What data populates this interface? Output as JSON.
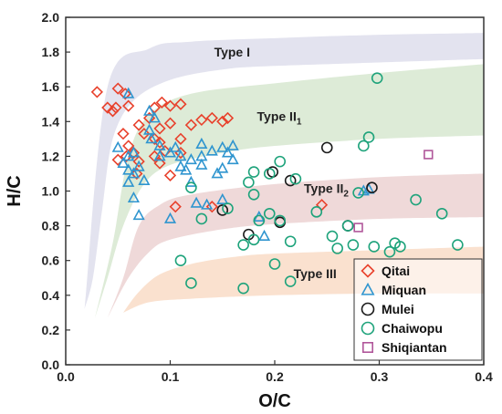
{
  "chart_data": {
    "type": "scatter",
    "xlabel": "O/C",
    "ylabel": "H/C",
    "xlim": [
      0,
      0.4
    ],
    "ylim": [
      0,
      2.0
    ],
    "x_ticks": [
      "0.0",
      "0.1",
      "0.2",
      "0.3",
      "0.4"
    ],
    "y_ticks": [
      "0.0",
      "0.2",
      "0.4",
      "0.6",
      "0.8",
      "1.0",
      "1.2",
      "1.4",
      "1.6",
      "1.8",
      "2.0"
    ],
    "grid": false,
    "legend_position": "bottom-right",
    "zones": [
      {
        "label": "Type I",
        "color": "#e3e3ef",
        "lower": [
          [
            0.018,
            0.32
          ],
          [
            0.026,
            0.5
          ],
          [
            0.035,
            0.9
          ],
          [
            0.045,
            1.3
          ],
          [
            0.065,
            1.52
          ],
          [
            0.1,
            1.64
          ],
          [
            0.15,
            1.7
          ],
          [
            0.2,
            1.72
          ],
          [
            0.3,
            1.74
          ],
          [
            0.4,
            1.76
          ]
        ],
        "upper": [
          [
            0.018,
            0.32
          ],
          [
            0.04,
            1.6
          ],
          [
            0.08,
            1.82
          ],
          [
            0.12,
            1.86
          ],
          [
            0.2,
            1.88
          ],
          [
            0.3,
            1.9
          ],
          [
            0.4,
            1.91
          ]
        ]
      },
      {
        "label": "Type II1",
        "color": "#ddebd7",
        "lower": [
          [
            0.028,
            0.27
          ],
          [
            0.04,
            0.5
          ],
          [
            0.055,
            0.8
          ],
          [
            0.075,
            1.04
          ],
          [
            0.1,
            1.15
          ],
          [
            0.15,
            1.22
          ],
          [
            0.2,
            1.26
          ],
          [
            0.3,
            1.3
          ],
          [
            0.4,
            1.32
          ]
        ],
        "upper": [
          [
            0.028,
            0.27
          ],
          [
            0.045,
            0.7
          ],
          [
            0.06,
            1.2
          ],
          [
            0.08,
            1.44
          ],
          [
            0.12,
            1.56
          ],
          [
            0.2,
            1.62
          ],
          [
            0.3,
            1.68
          ],
          [
            0.4,
            1.73
          ]
        ]
      },
      {
        "label": "Type II2",
        "color": "#efd9d9",
        "lower": [
          [
            0.04,
            0.27
          ],
          [
            0.06,
            0.5
          ],
          [
            0.08,
            0.65
          ],
          [
            0.1,
            0.72
          ],
          [
            0.15,
            0.78
          ],
          [
            0.2,
            0.81
          ],
          [
            0.3,
            0.84
          ],
          [
            0.4,
            0.85
          ]
        ],
        "upper": [
          [
            0.04,
            0.27
          ],
          [
            0.055,
            0.5
          ],
          [
            0.07,
            0.8
          ],
          [
            0.09,
            0.92
          ],
          [
            0.12,
            0.98
          ],
          [
            0.2,
            1.04
          ],
          [
            0.3,
            1.08
          ],
          [
            0.4,
            1.1
          ]
        ]
      },
      {
        "label": "Type III",
        "color": "#fae1cf",
        "lower": [
          [
            0.055,
            0.3
          ],
          [
            0.08,
            0.36
          ],
          [
            0.12,
            0.38
          ],
          [
            0.2,
            0.4
          ],
          [
            0.3,
            0.41
          ],
          [
            0.4,
            0.41
          ]
        ],
        "upper": [
          [
            0.055,
            0.3
          ],
          [
            0.07,
            0.42
          ],
          [
            0.09,
            0.52
          ],
          [
            0.12,
            0.58
          ],
          [
            0.16,
            0.62
          ],
          [
            0.2,
            0.64
          ],
          [
            0.3,
            0.66
          ],
          [
            0.4,
            0.68
          ]
        ]
      }
    ],
    "zone_labels": [
      {
        "main": "Type I",
        "sub": "",
        "x": 0.142,
        "y": 1.775
      },
      {
        "main": "Type II",
        "sub": "1",
        "x": 0.183,
        "y": 1.405
      },
      {
        "main": "Type II",
        "sub": "2",
        "x": 0.228,
        "y": 0.99
      },
      {
        "main": "Type III",
        "sub": "",
        "x": 0.218,
        "y": 0.5
      }
    ],
    "series": [
      {
        "name": "Qitai",
        "marker": "diamond",
        "color": "#e8412c",
        "points": [
          [
            0.03,
            1.57
          ],
          [
            0.05,
            1.59
          ],
          [
            0.057,
            1.56
          ],
          [
            0.04,
            1.48
          ],
          [
            0.045,
            1.46
          ],
          [
            0.048,
            1.48
          ],
          [
            0.06,
            1.49
          ],
          [
            0.08,
            1.42
          ],
          [
            0.085,
            1.48
          ],
          [
            0.092,
            1.51
          ],
          [
            0.1,
            1.49
          ],
          [
            0.11,
            1.5
          ],
          [
            0.07,
            1.38
          ],
          [
            0.09,
            1.36
          ],
          [
            0.1,
            1.39
          ],
          [
            0.12,
            1.38
          ],
          [
            0.13,
            1.41
          ],
          [
            0.14,
            1.42
          ],
          [
            0.15,
            1.4
          ],
          [
            0.155,
            1.42
          ],
          [
            0.055,
            1.33
          ],
          [
            0.06,
            1.26
          ],
          [
            0.065,
            1.22
          ],
          [
            0.075,
            1.33
          ],
          [
            0.085,
            1.3
          ],
          [
            0.09,
            1.28
          ],
          [
            0.11,
            1.3
          ],
          [
            0.095,
            1.23
          ],
          [
            0.11,
            1.22
          ],
          [
            0.07,
            1.17
          ],
          [
            0.05,
            1.18
          ],
          [
            0.058,
            1.2
          ],
          [
            0.068,
            1.1
          ],
          [
            0.085,
            1.2
          ],
          [
            0.09,
            1.16
          ],
          [
            0.1,
            1.09
          ],
          [
            0.105,
            0.91
          ],
          [
            0.14,
            0.91
          ],
          [
            0.245,
            0.92
          ]
        ]
      },
      {
        "name": "Miquan",
        "marker": "triangle",
        "color": "#2f95cf",
        "points": [
          [
            0.06,
            1.56
          ],
          [
            0.08,
            1.46
          ],
          [
            0.085,
            1.42
          ],
          [
            0.08,
            1.35
          ],
          [
            0.082,
            1.3
          ],
          [
            0.09,
            1.26
          ],
          [
            0.05,
            1.25
          ],
          [
            0.06,
            1.2
          ],
          [
            0.065,
            1.22
          ],
          [
            0.055,
            1.16
          ],
          [
            0.06,
            1.12
          ],
          [
            0.065,
            1.1
          ],
          [
            0.07,
            1.14
          ],
          [
            0.075,
            1.06
          ],
          [
            0.06,
            1.05
          ],
          [
            0.065,
            0.96
          ],
          [
            0.07,
            0.86
          ],
          [
            0.09,
            1.2
          ],
          [
            0.1,
            1.22
          ],
          [
            0.105,
            1.25
          ],
          [
            0.11,
            1.2
          ],
          [
            0.11,
            1.14
          ],
          [
            0.12,
            1.18
          ],
          [
            0.13,
            1.2
          ],
          [
            0.14,
            1.23
          ],
          [
            0.15,
            1.25
          ],
          [
            0.155,
            1.22
          ],
          [
            0.16,
            1.26
          ],
          [
            0.13,
            1.27
          ],
          [
            0.115,
            1.12
          ],
          [
            0.13,
            1.15
          ],
          [
            0.15,
            1.13
          ],
          [
            0.16,
            1.18
          ],
          [
            0.12,
            1.05
          ],
          [
            0.145,
            1.1
          ],
          [
            0.1,
            0.84
          ],
          [
            0.125,
            0.93
          ],
          [
            0.135,
            0.92
          ],
          [
            0.15,
            0.95
          ],
          [
            0.185,
            0.85
          ],
          [
            0.19,
            0.74
          ],
          [
            0.285,
            1.0
          ],
          [
            0.29,
            1.01
          ]
        ]
      },
      {
        "name": "Mulei",
        "marker": "circle",
        "color": "#1a1a1a",
        "points": [
          [
            0.25,
            1.25
          ],
          [
            0.198,
            1.11
          ],
          [
            0.215,
            1.06
          ],
          [
            0.15,
            0.89
          ],
          [
            0.205,
            0.82
          ],
          [
            0.175,
            0.75
          ],
          [
            0.293,
            1.02
          ],
          [
            0.27,
            0.8
          ]
        ]
      },
      {
        "name": "Chaiwopu",
        "marker": "circle",
        "color": "#1ea37b",
        "points": [
          [
            0.298,
            1.65
          ],
          [
            0.29,
            1.31
          ],
          [
            0.285,
            1.26
          ],
          [
            0.205,
            1.17
          ],
          [
            0.195,
            1.1
          ],
          [
            0.22,
            1.07
          ],
          [
            0.18,
            1.11
          ],
          [
            0.175,
            1.05
          ],
          [
            0.12,
            1.02
          ],
          [
            0.18,
            0.98
          ],
          [
            0.195,
            0.87
          ],
          [
            0.185,
            0.83
          ],
          [
            0.205,
            0.83
          ],
          [
            0.24,
            0.88
          ],
          [
            0.28,
            0.99
          ],
          [
            0.27,
            0.8
          ],
          [
            0.255,
            0.74
          ],
          [
            0.26,
            0.67
          ],
          [
            0.275,
            0.69
          ],
          [
            0.295,
            0.68
          ],
          [
            0.31,
            0.65
          ],
          [
            0.315,
            0.7
          ],
          [
            0.32,
            0.68
          ],
          [
            0.335,
            0.95
          ],
          [
            0.36,
            0.87
          ],
          [
            0.375,
            0.69
          ],
          [
            0.17,
            0.69
          ],
          [
            0.18,
            0.72
          ],
          [
            0.215,
            0.71
          ],
          [
            0.2,
            0.58
          ],
          [
            0.215,
            0.48
          ],
          [
            0.11,
            0.6
          ],
          [
            0.12,
            0.47
          ],
          [
            0.17,
            0.44
          ],
          [
            0.13,
            0.84
          ],
          [
            0.155,
            0.9
          ]
        ]
      },
      {
        "name": "Shiqiantan",
        "marker": "square",
        "color": "#b0569a",
        "points": [
          [
            0.347,
            1.21
          ],
          [
            0.28,
            0.79
          ]
        ]
      }
    ]
  }
}
